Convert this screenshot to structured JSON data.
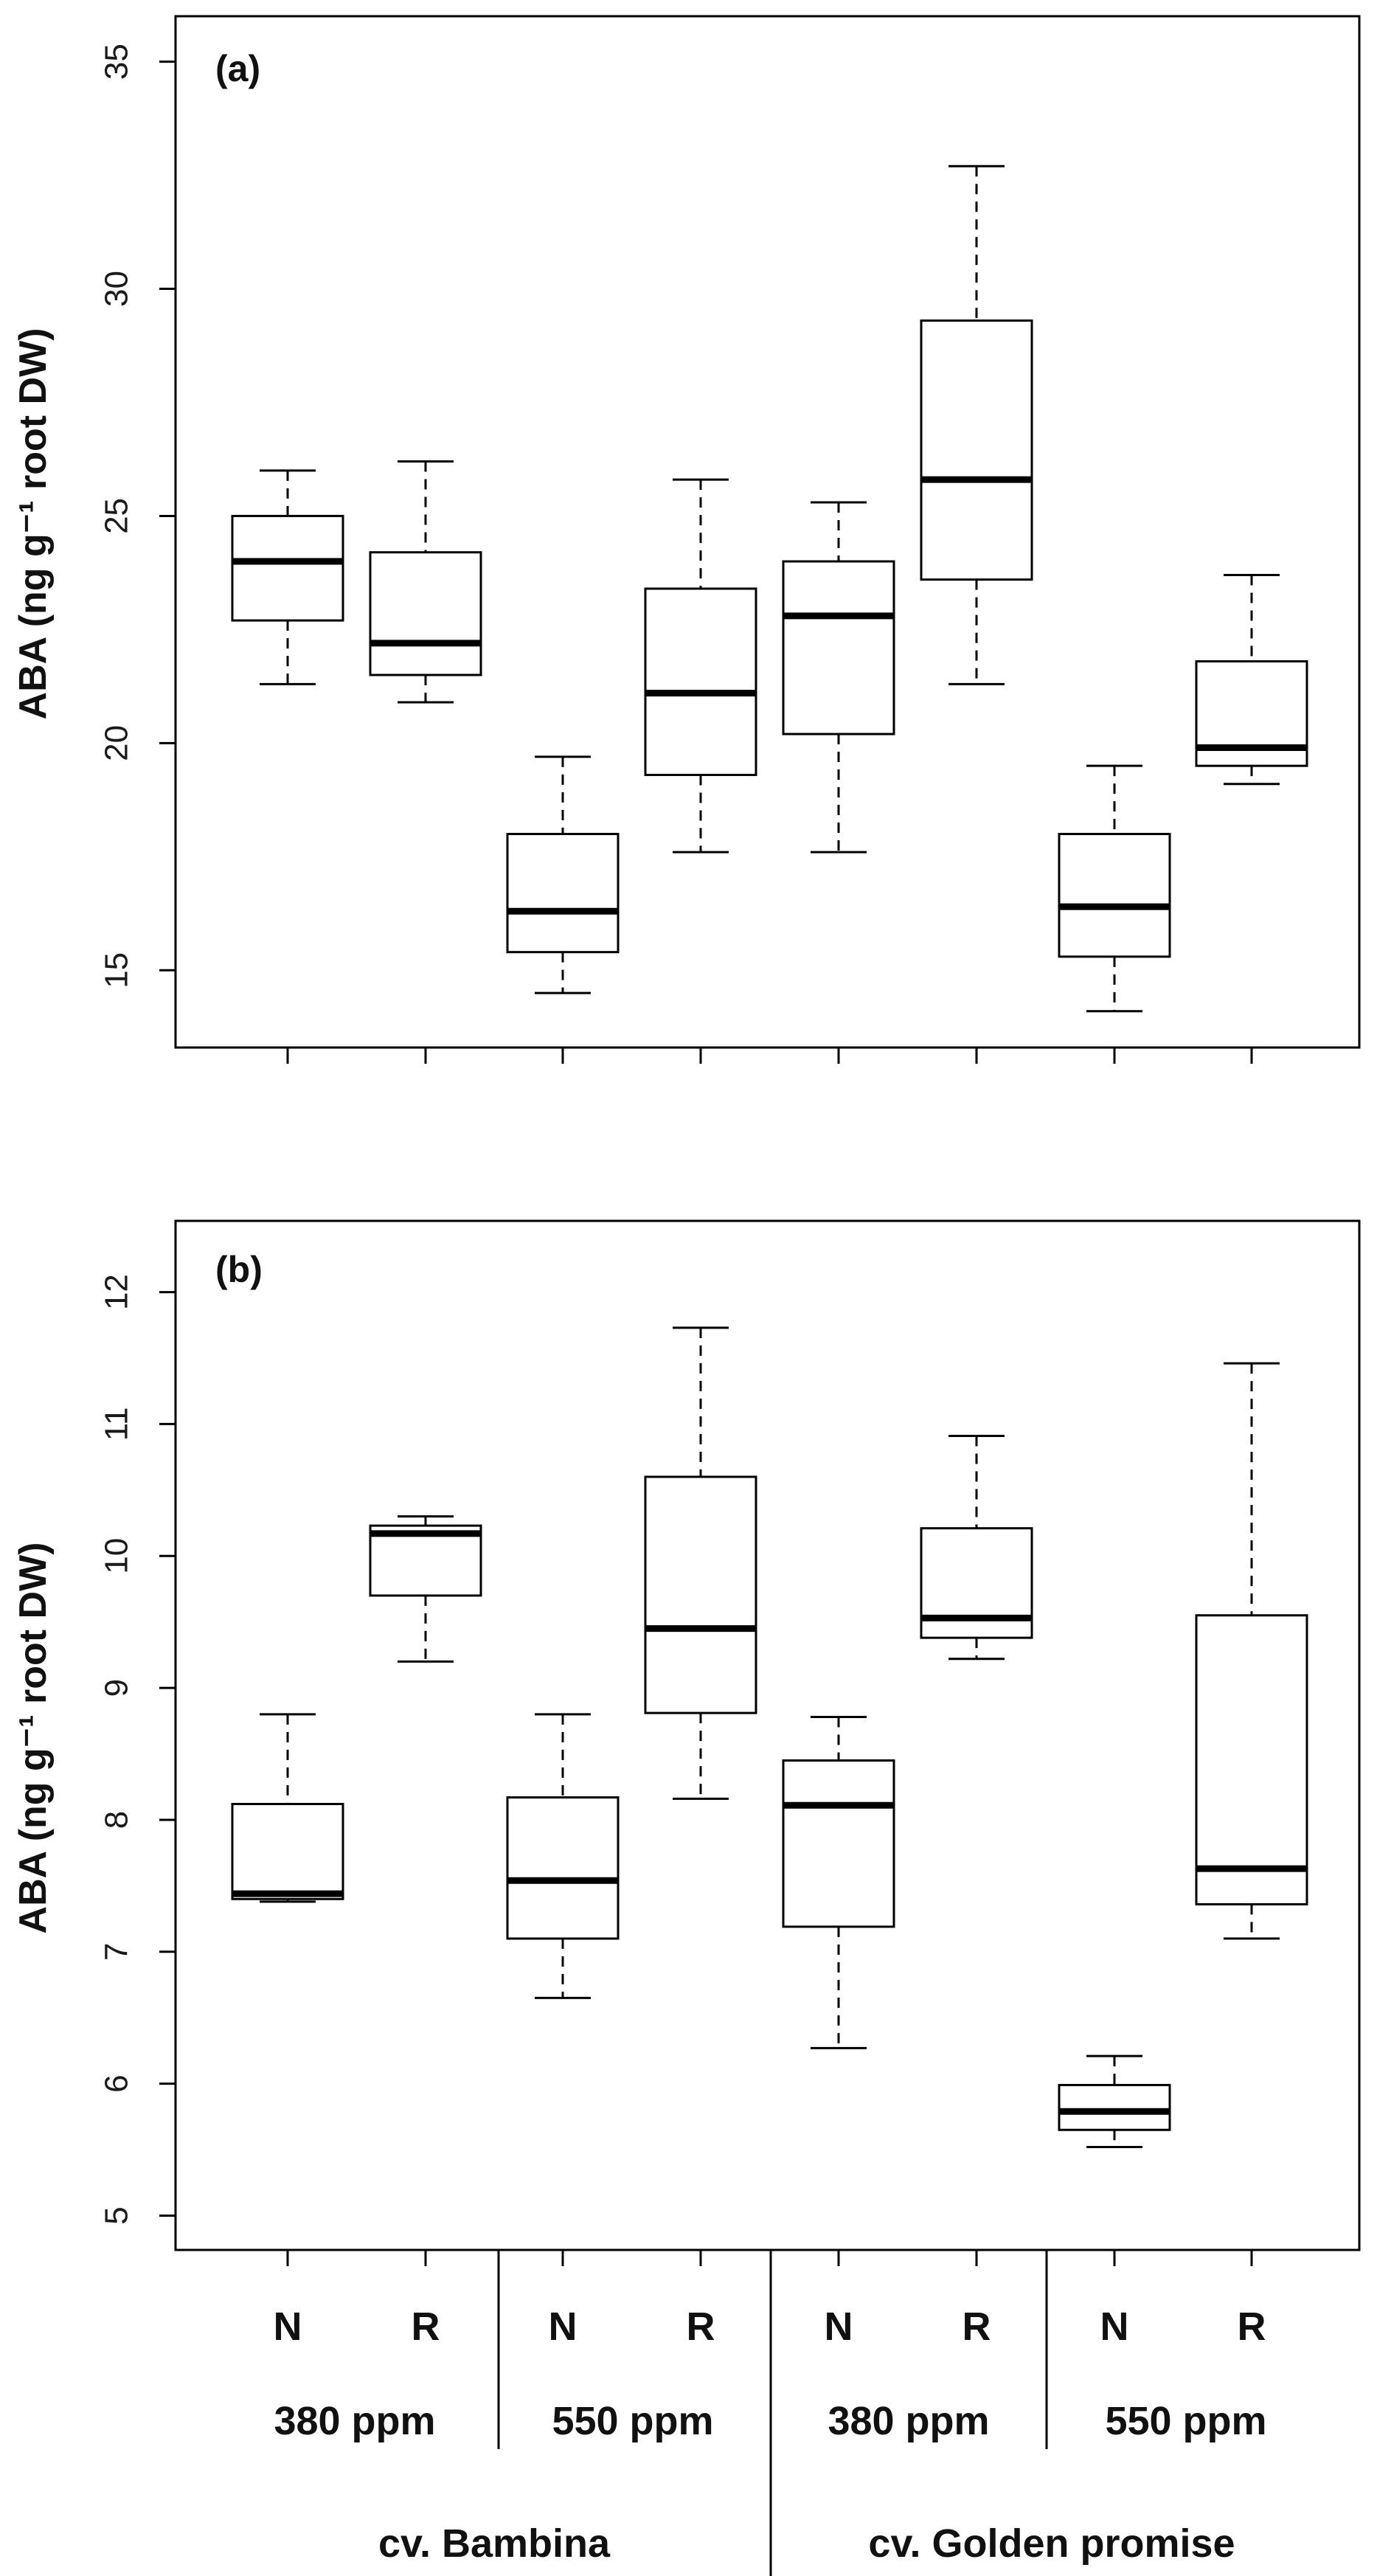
{
  "chart_data": [
    {
      "type": "boxplot",
      "panel_label": "(a)",
      "ylabel": "ABA (ng g⁻¹ root DW)",
      "ylim": [
        13.3,
        36
      ],
      "yticks": [
        15,
        20,
        25,
        30,
        35
      ],
      "y_tick_labels": [
        "15",
        "20",
        "25",
        "30",
        "35"
      ],
      "grid": false,
      "boxes": [
        {
          "min": 21.3,
          "q1": 22.7,
          "median": 24.0,
          "q3": 25.0,
          "max": 26.0
        },
        {
          "min": 20.9,
          "q1": 21.5,
          "median": 22.2,
          "q3": 24.2,
          "max": 26.2
        },
        {
          "min": 14.5,
          "q1": 15.4,
          "median": 16.3,
          "q3": 18.0,
          "max": 19.7
        },
        {
          "min": 17.6,
          "q1": 19.3,
          "median": 21.1,
          "q3": 23.4,
          "max": 25.8
        },
        {
          "min": 17.6,
          "q1": 20.2,
          "median": 22.8,
          "q3": 24.0,
          "max": 25.3
        },
        {
          "min": 21.3,
          "q1": 23.6,
          "median": 25.8,
          "q3": 29.3,
          "max": 32.7
        },
        {
          "min": 14.1,
          "q1": 15.3,
          "median": 16.4,
          "q3": 18.0,
          "max": 19.5
        },
        {
          "min": 19.1,
          "q1": 19.5,
          "median": 19.9,
          "q3": 21.8,
          "max": 23.7
        }
      ]
    },
    {
      "type": "boxplot",
      "panel_label": "(b)",
      "ylabel": "ABA (ng g⁻¹ root DW)",
      "ylim": [
        4.74,
        12.54
      ],
      "yticks": [
        5,
        6,
        7,
        8,
        9,
        10,
        11,
        12
      ],
      "y_tick_labels": [
        "5",
        "6",
        "7",
        "8",
        "9",
        "10",
        "11",
        "12"
      ],
      "grid": false,
      "boxes": [
        {
          "min": 7.38,
          "q1": 7.4,
          "median": 7.44,
          "q3": 8.12,
          "max": 8.8
        },
        {
          "min": 9.2,
          "q1": 9.7,
          "median": 10.17,
          "q3": 10.23,
          "max": 10.3
        },
        {
          "min": 6.65,
          "q1": 7.1,
          "median": 7.54,
          "q3": 8.17,
          "max": 8.8
        },
        {
          "min": 8.16,
          "q1": 8.81,
          "median": 9.45,
          "q3": 10.6,
          "max": 11.73
        },
        {
          "min": 6.27,
          "q1": 7.19,
          "median": 8.11,
          "q3": 8.45,
          "max": 8.78
        },
        {
          "min": 9.22,
          "q1": 9.38,
          "median": 9.53,
          "q3": 10.21,
          "max": 10.91
        },
        {
          "min": 5.52,
          "q1": 5.65,
          "median": 5.79,
          "q3": 5.99,
          "max": 6.21
        },
        {
          "min": 7.1,
          "q1": 7.36,
          "median": 7.63,
          "q3": 9.55,
          "max": 11.46
        }
      ]
    }
  ],
  "x_axis": {
    "categories": [
      "N",
      "R",
      "N",
      "R",
      "N",
      "R",
      "N",
      "R"
    ],
    "co2_groups": [
      "380 ppm",
      "550 ppm",
      "380 ppm",
      "550 ppm"
    ],
    "cultivars": [
      "cv. Bambina",
      "cv. Golden promise"
    ]
  }
}
